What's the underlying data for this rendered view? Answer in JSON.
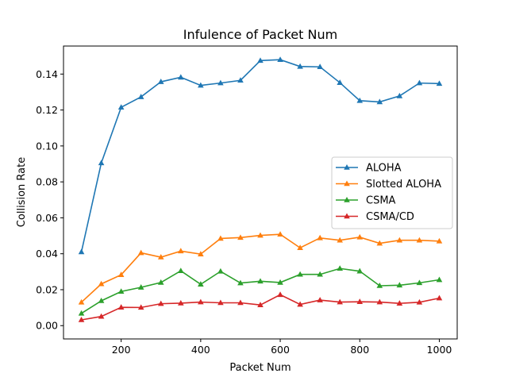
{
  "chart_data": {
    "type": "line",
    "title": "Infulence of Packet Num",
    "xlabel": "Packet Num",
    "ylabel": "Collision Rate",
    "xlim": [
      55,
      1045
    ],
    "ylim": [
      -0.0074,
      0.1556
    ],
    "xticks": [
      200,
      400,
      600,
      800,
      1000
    ],
    "yticks": [
      0.0,
      0.02,
      0.04,
      0.06,
      0.08,
      0.1,
      0.12,
      0.14
    ],
    "ytick_labels": [
      "0.00",
      "0.02",
      "0.04",
      "0.06",
      "0.08",
      "0.10",
      "0.12",
      "0.14"
    ],
    "grid": false,
    "legend_position": "center-right",
    "x": [
      100,
      150,
      200,
      250,
      300,
      350,
      400,
      450,
      500,
      550,
      600,
      650,
      700,
      750,
      800,
      850,
      900,
      950,
      1000
    ],
    "series": [
      {
        "name": "ALOHA",
        "color": "#1f77b4",
        "values": [
          0.041,
          0.0905,
          0.1215,
          0.1273,
          0.1357,
          0.1382,
          0.1337,
          0.135,
          0.1365,
          0.1475,
          0.148,
          0.1442,
          0.144,
          0.1352,
          0.1252,
          0.1245,
          0.1278,
          0.135,
          0.1347
        ]
      },
      {
        "name": "Slotted ALOHA",
        "color": "#ff7f0e",
        "values": [
          0.013,
          0.0232,
          0.0283,
          0.0405,
          0.0381,
          0.0415,
          0.0398,
          0.0485,
          0.049,
          0.0502,
          0.0508,
          0.0433,
          0.0488,
          0.0475,
          0.0492,
          0.0458,
          0.0475,
          0.0475,
          0.047
        ]
      },
      {
        "name": "CSMA",
        "color": "#2ca02c",
        "values": [
          0.0068,
          0.0138,
          0.019,
          0.0213,
          0.024,
          0.0305,
          0.023,
          0.0302,
          0.0237,
          0.0247,
          0.024,
          0.0285,
          0.0285,
          0.0318,
          0.0303,
          0.0222,
          0.0225,
          0.0238,
          0.0255
        ]
      },
      {
        "name": "CSMA/CD",
        "color": "#d62728",
        "values": [
          0.0032,
          0.0051,
          0.0102,
          0.0101,
          0.0122,
          0.0125,
          0.0131,
          0.0127,
          0.0127,
          0.0115,
          0.0172,
          0.0118,
          0.0142,
          0.0131,
          0.0133,
          0.0131,
          0.0124,
          0.013,
          0.0153
        ]
      }
    ]
  }
}
